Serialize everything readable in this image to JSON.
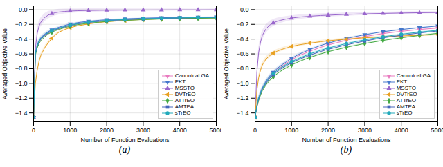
{
  "chart_data": [
    {
      "type": "line",
      "title": "(a)",
      "xlabel": "Number of Function Evaluations",
      "ylabel": "Averaged Objective Value",
      "xlim": [
        0,
        5000
      ],
      "xticks": [
        0,
        1000,
        2000,
        3000,
        4000,
        5000
      ],
      "ylim": [
        -1.52,
        0.05
      ],
      "yticks": [
        {
          "value": 0.0,
          "label": "0.0"
        },
        {
          "value": -0.2,
          "label": "−0.2"
        },
        {
          "value": -0.4,
          "label": "−0.4"
        },
        {
          "value": -0.6,
          "label": "−0.6"
        },
        {
          "value": -0.8,
          "label": "−0.8"
        },
        {
          "value": -1.0,
          "label": "−1.0"
        },
        {
          "value": -1.2,
          "label": "−1.2"
        },
        {
          "value": -1.4,
          "label": "−1.4"
        }
      ],
      "grid": true,
      "legend": "lower right",
      "x": [
        0,
        50,
        100,
        150,
        200,
        300,
        400,
        500,
        600,
        700,
        850,
        1000,
        1200,
        1500,
        1800,
        2000,
        2500,
        3000,
        3500,
        4000,
        4500,
        5000
      ],
      "series": [
        {
          "name": "Canonical GA",
          "color": "#e87abf",
          "marker": "triangle-down",
          "values": [
            -1.46,
            -0.6,
            -0.5,
            -0.44,
            -0.4,
            -0.355,
            -0.32,
            -0.295,
            -0.275,
            -0.26,
            -0.235,
            -0.215,
            -0.195,
            -0.175,
            -0.16,
            -0.152,
            -0.138,
            -0.128,
            -0.121,
            -0.116,
            -0.113,
            -0.11
          ],
          "std": [
            0.0,
            0.03,
            0.025,
            0.022,
            0.02,
            0.018,
            0.015,
            0.013,
            0.012,
            0.011,
            0.009,
            0.008,
            0.007,
            0.007,
            0.006,
            0.006,
            0.005,
            0.005,
            0.004,
            0.004,
            0.004,
            0.004
          ]
        },
        {
          "name": "EKT",
          "color": "#4477cc",
          "marker": "triangle-down",
          "values": [
            -1.46,
            -0.58,
            -0.48,
            -0.42,
            -0.38,
            -0.335,
            -0.3,
            -0.275,
            -0.255,
            -0.238,
            -0.215,
            -0.196,
            -0.177,
            -0.158,
            -0.145,
            -0.138,
            -0.125,
            -0.116,
            -0.11,
            -0.106,
            -0.103,
            -0.1
          ],
          "std": [
            0.0,
            0.04,
            0.035,
            0.03,
            0.025,
            0.022,
            0.018,
            0.015,
            0.013,
            0.012,
            0.01,
            0.009,
            0.008,
            0.007,
            0.006,
            0.006,
            0.005,
            0.005,
            0.004,
            0.004,
            0.004,
            0.004
          ]
        },
        {
          "name": "MSSTO",
          "color": "#9966cc",
          "marker": "triangle-up",
          "values": [
            -1.46,
            -0.52,
            -0.32,
            -0.22,
            -0.17,
            -0.11,
            -0.075,
            -0.055,
            -0.042,
            -0.033,
            -0.025,
            -0.02,
            -0.016,
            -0.012,
            -0.01,
            -0.009,
            -0.007,
            -0.006,
            -0.005,
            -0.004,
            -0.004,
            -0.003
          ],
          "std": [
            0.0,
            0.07,
            0.07,
            0.065,
            0.06,
            0.055,
            0.05,
            0.045,
            0.04,
            0.038,
            0.033,
            0.03,
            0.027,
            0.024,
            0.022,
            0.02,
            0.018,
            0.016,
            0.015,
            0.014,
            0.013,
            0.013
          ]
        },
        {
          "name": "DVTrEO",
          "color": "#e8a020",
          "marker": "triangle-left",
          "values": [
            -1.46,
            -1.0,
            -0.82,
            -0.7,
            -0.62,
            -0.52,
            -0.45,
            -0.39,
            -0.34,
            -0.305,
            -0.27,
            -0.245,
            -0.22,
            -0.195,
            -0.175,
            -0.165,
            -0.148,
            -0.135,
            -0.126,
            -0.12,
            -0.115,
            -0.111
          ],
          "std": [
            0.0,
            0.04,
            0.035,
            0.03,
            0.028,
            0.025,
            0.02,
            0.018,
            0.015,
            0.014,
            0.012,
            0.011,
            0.01,
            0.009,
            0.008,
            0.008,
            0.007,
            0.006,
            0.006,
            0.005,
            0.005,
            0.005
          ]
        },
        {
          "name": "ATTrEO",
          "color": "#44aa44",
          "marker": "diamond",
          "values": [
            -1.46,
            -0.62,
            -0.52,
            -0.46,
            -0.42,
            -0.37,
            -0.33,
            -0.305,
            -0.285,
            -0.268,
            -0.245,
            -0.225,
            -0.205,
            -0.185,
            -0.17,
            -0.162,
            -0.147,
            -0.136,
            -0.128,
            -0.122,
            -0.118,
            -0.115
          ],
          "std": [
            0.0,
            0.03,
            0.025,
            0.022,
            0.02,
            0.018,
            0.015,
            0.013,
            0.012,
            0.011,
            0.009,
            0.008,
            0.007,
            0.007,
            0.006,
            0.006,
            0.005,
            0.005,
            0.004,
            0.004,
            0.004,
            0.004
          ]
        },
        {
          "name": "AMTEA",
          "color": "#4466bb",
          "marker": "square",
          "values": [
            -1.46,
            -0.6,
            -0.5,
            -0.44,
            -0.4,
            -0.355,
            -0.315,
            -0.29,
            -0.27,
            -0.255,
            -0.233,
            -0.213,
            -0.193,
            -0.173,
            -0.158,
            -0.15,
            -0.136,
            -0.126,
            -0.119,
            -0.114,
            -0.11,
            -0.108
          ],
          "std": [
            0.0,
            0.03,
            0.025,
            0.022,
            0.02,
            0.018,
            0.015,
            0.013,
            0.012,
            0.011,
            0.009,
            0.008,
            0.007,
            0.007,
            0.006,
            0.006,
            0.005,
            0.005,
            0.004,
            0.004,
            0.004,
            0.004
          ]
        },
        {
          "name": "sTrEO",
          "color": "#22aabb",
          "marker": "circle",
          "values": [
            -1.46,
            -0.59,
            -0.49,
            -0.43,
            -0.39,
            -0.345,
            -0.31,
            -0.285,
            -0.265,
            -0.25,
            -0.228,
            -0.21,
            -0.19,
            -0.17,
            -0.156,
            -0.148,
            -0.134,
            -0.124,
            -0.117,
            -0.112,
            -0.108,
            -0.106
          ],
          "std": [
            0.0,
            0.03,
            0.025,
            0.022,
            0.02,
            0.018,
            0.015,
            0.013,
            0.012,
            0.011,
            0.009,
            0.008,
            0.007,
            0.007,
            0.006,
            0.006,
            0.005,
            0.005,
            0.004,
            0.004,
            0.004,
            0.004
          ]
        }
      ]
    },
    {
      "type": "line",
      "title": "(b)",
      "xlabel": "Number of Function Evaluations",
      "ylabel": "Averaged Objective Value",
      "xlim": [
        0,
        5000
      ],
      "xticks": [
        0,
        1000,
        2000,
        3000,
        4000,
        5000
      ],
      "ylim": [
        -1.52,
        0.05
      ],
      "yticks": [
        {
          "value": 0.0,
          "label": "0.0"
        },
        {
          "value": -0.2,
          "label": "−0.2"
        },
        {
          "value": -0.4,
          "label": "−0.4"
        },
        {
          "value": -0.6,
          "label": "−0.6"
        },
        {
          "value": -0.8,
          "label": "−0.8"
        },
        {
          "value": -1.0,
          "label": "−1.0"
        },
        {
          "value": -1.2,
          "label": "−1.2"
        },
        {
          "value": -1.4,
          "label": "−1.4"
        }
      ],
      "grid": true,
      "legend": "lower right",
      "x": [
        0,
        50,
        100,
        150,
        200,
        300,
        400,
        500,
        600,
        700,
        850,
        1000,
        1200,
        1500,
        1800,
        2000,
        2500,
        3000,
        3500,
        4000,
        4500,
        5000
      ],
      "series": [
        {
          "name": "Canonical GA",
          "color": "#e87abf",
          "marker": "triangle-down",
          "values": [
            -1.46,
            -1.32,
            -1.22,
            -1.14,
            -1.08,
            -0.99,
            -0.92,
            -0.87,
            -0.82,
            -0.78,
            -0.73,
            -0.68,
            -0.625,
            -0.565,
            -0.51,
            -0.48,
            -0.415,
            -0.365,
            -0.325,
            -0.295,
            -0.27,
            -0.25
          ],
          "std": [
            0.0,
            0.03,
            0.03,
            0.028,
            0.026,
            0.024,
            0.022,
            0.02,
            0.018,
            0.017,
            0.015,
            0.014,
            0.013,
            0.012,
            0.011,
            0.01,
            0.009,
            0.009,
            0.008,
            0.008,
            0.007,
            0.007
          ]
        },
        {
          "name": "EKT",
          "color": "#4477cc",
          "marker": "triangle-down",
          "values": [
            -1.46,
            -1.3,
            -1.2,
            -1.12,
            -1.06,
            -0.97,
            -0.9,
            -0.85,
            -0.8,
            -0.76,
            -0.71,
            -0.66,
            -0.605,
            -0.54,
            -0.485,
            -0.455,
            -0.39,
            -0.34,
            -0.3,
            -0.27,
            -0.245,
            -0.222
          ],
          "std": [
            0.0,
            0.035,
            0.032,
            0.03,
            0.028,
            0.026,
            0.024,
            0.022,
            0.02,
            0.019,
            0.017,
            0.016,
            0.015,
            0.014,
            0.013,
            0.012,
            0.011,
            0.01,
            0.009,
            0.009,
            0.008,
            0.008
          ]
        },
        {
          "name": "MSSTO",
          "color": "#9966cc",
          "marker": "triangle-up",
          "values": [
            -1.46,
            -0.85,
            -0.58,
            -0.44,
            -0.35,
            -0.26,
            -0.21,
            -0.18,
            -0.16,
            -0.145,
            -0.128,
            -0.115,
            -0.102,
            -0.09,
            -0.08,
            -0.076,
            -0.065,
            -0.058,
            -0.052,
            -0.047,
            -0.043,
            -0.04
          ],
          "std": [
            0.0,
            0.08,
            0.075,
            0.07,
            0.065,
            0.058,
            0.052,
            0.047,
            0.043,
            0.04,
            0.036,
            0.033,
            0.03,
            0.027,
            0.025,
            0.024,
            0.022,
            0.02,
            0.019,
            0.018,
            0.017,
            0.016
          ]
        },
        {
          "name": "DVTrEO",
          "color": "#e8a020",
          "marker": "triangle-left",
          "values": [
            -1.46,
            -1.1,
            -0.92,
            -0.82,
            -0.75,
            -0.67,
            -0.625,
            -0.59,
            -0.565,
            -0.545,
            -0.52,
            -0.5,
            -0.478,
            -0.455,
            -0.435,
            -0.423,
            -0.4,
            -0.382,
            -0.368,
            -0.357,
            -0.348,
            -0.34
          ],
          "std": [
            0.0,
            0.045,
            0.04,
            0.038,
            0.036,
            0.033,
            0.031,
            0.029,
            0.027,
            0.026,
            0.024,
            0.022,
            0.021,
            0.019,
            0.018,
            0.017,
            0.016,
            0.015,
            0.014,
            0.013,
            0.013,
            0.012
          ]
        },
        {
          "name": "ATTrEO",
          "color": "#44aa44",
          "marker": "diamond",
          "values": [
            -1.46,
            -1.32,
            -1.23,
            -1.16,
            -1.1,
            -1.02,
            -0.96,
            -0.91,
            -0.87,
            -0.835,
            -0.79,
            -0.75,
            -0.705,
            -0.648,
            -0.6,
            -0.57,
            -0.51,
            -0.46,
            -0.418,
            -0.382,
            -0.35,
            -0.322
          ],
          "std": [
            0.0,
            0.03,
            0.028,
            0.026,
            0.025,
            0.023,
            0.021,
            0.02,
            0.019,
            0.018,
            0.016,
            0.015,
            0.014,
            0.013,
            0.012,
            0.012,
            0.011,
            0.01,
            0.01,
            0.009,
            0.009,
            0.008
          ]
        },
        {
          "name": "AMTEA",
          "color": "#4466bb",
          "marker": "square",
          "values": [
            -1.46,
            -1.31,
            -1.21,
            -1.14,
            -1.08,
            -1.0,
            -0.93,
            -0.88,
            -0.84,
            -0.805,
            -0.76,
            -0.72,
            -0.675,
            -0.617,
            -0.567,
            -0.538,
            -0.478,
            -0.426,
            -0.382,
            -0.348,
            -0.317,
            -0.29
          ],
          "std": [
            0.0,
            0.033,
            0.03,
            0.028,
            0.027,
            0.025,
            0.023,
            0.021,
            0.02,
            0.019,
            0.017,
            0.016,
            0.015,
            0.014,
            0.013,
            0.012,
            0.011,
            0.01,
            0.01,
            0.009,
            0.009,
            0.008
          ]
        },
        {
          "name": "sTrEO",
          "color": "#22aabb",
          "marker": "circle",
          "values": [
            -1.46,
            -1.3,
            -1.2,
            -1.13,
            -1.07,
            -0.985,
            -0.915,
            -0.866,
            -0.825,
            -0.79,
            -0.745,
            -0.705,
            -0.66,
            -0.6,
            -0.55,
            -0.52,
            -0.46,
            -0.41,
            -0.368,
            -0.334,
            -0.305,
            -0.28
          ],
          "std": [
            0.0,
            0.033,
            0.03,
            0.028,
            0.027,
            0.025,
            0.023,
            0.021,
            0.02,
            0.019,
            0.017,
            0.016,
            0.015,
            0.014,
            0.013,
            0.012,
            0.011,
            0.01,
            0.01,
            0.009,
            0.009,
            0.008
          ]
        }
      ]
    }
  ]
}
